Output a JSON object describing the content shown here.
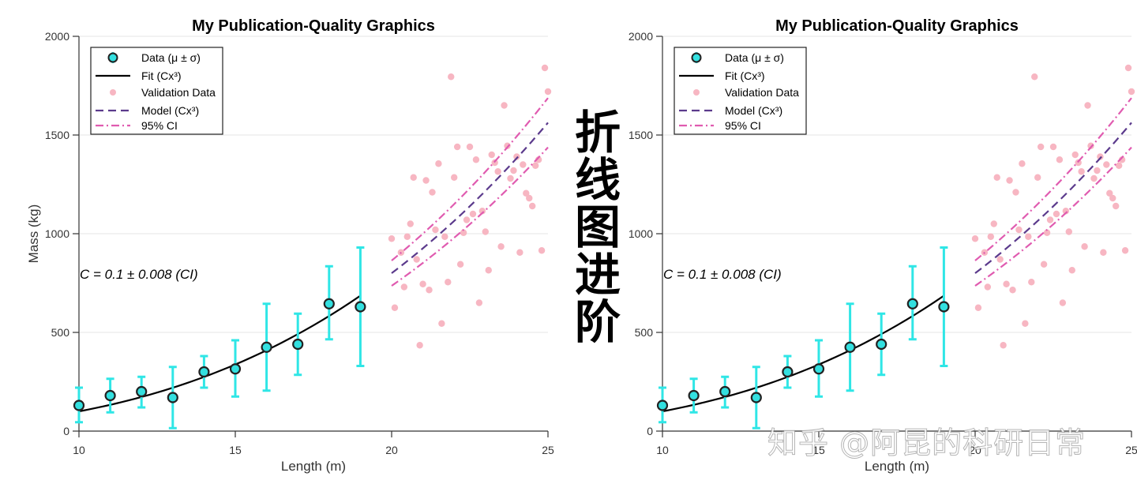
{
  "side_text": [
    "折",
    "线",
    "图",
    "进",
    "阶"
  ],
  "watermark": "知乎 @阿昆的科研日常",
  "colors": {
    "data_marker_fill": "#33e0e0",
    "data_marker_edge": "#222222",
    "errorbar": "#2fe6e6",
    "fit": "#000000",
    "validation": "#f7b6c2",
    "model": "#5b3a8c",
    "ci": "#e05bb0",
    "grid": "#e6e6e6"
  },
  "chart_data": [
    {
      "type": "line",
      "title": "My Publication-Quality Graphics",
      "xlabel": "Length (m)",
      "ylabel": "Mass (kg)",
      "xlim": [
        10,
        25
      ],
      "ylim": [
        0,
        2000
      ],
      "xticks": [
        "10",
        "15",
        "20",
        "25"
      ],
      "yticks": [
        "0",
        "500",
        "1000",
        "1500",
        "2000"
      ],
      "grid": "horizontal",
      "legend_position": "top-left",
      "legend": [
        "Data (μ ± σ)",
        "Fit (Cx³)",
        "Validation Data",
        "Model (Cx³)",
        "95% CI"
      ],
      "annotation": "C = 0.1 ± 0.008 (CI)",
      "data": {
        "x": [
          10,
          11,
          12,
          13,
          14,
          15,
          16,
          17,
          18,
          19
        ],
        "mean": [
          130,
          180,
          200,
          170,
          300,
          315,
          425,
          440,
          645,
          630
        ],
        "lower": [
          45,
          95,
          120,
          15,
          220,
          175,
          205,
          285,
          465,
          330
        ],
        "upper": [
          220,
          265,
          275,
          325,
          380,
          460,
          645,
          595,
          835,
          930
        ]
      },
      "fit": {
        "form": "C*x^3",
        "C": 0.1,
        "x_range": [
          10,
          19
        ]
      },
      "validation": {
        "x": [
          20.0,
          20.1,
          20.3,
          20.4,
          20.5,
          20.6,
          20.7,
          20.8,
          20.9,
          21.0,
          21.1,
          21.2,
          21.3,
          21.4,
          21.5,
          21.6,
          21.7,
          21.8,
          21.9,
          22.0,
          22.1,
          22.2,
          22.3,
          22.4,
          22.5,
          22.6,
          22.7,
          22.8,
          22.9,
          23.0,
          23.1,
          23.2,
          23.3,
          23.4,
          23.5,
          23.6,
          23.7,
          23.8,
          23.9,
          24.0,
          24.1,
          24.2,
          24.3,
          24.4,
          24.5,
          24.6,
          24.7,
          24.8,
          24.9,
          25.0
        ],
        "y": [
          975,
          625,
          905,
          730,
          985,
          1050,
          1285,
          870,
          435,
          745,
          1270,
          715,
          1210,
          1020,
          1355,
          545,
          985,
          755,
          1795,
          1285,
          1440,
          845,
          1005,
          1070,
          1440,
          1100,
          1375,
          650,
          1115,
          1010,
          815,
          1400,
          1360,
          1315,
          935,
          1650,
          1445,
          1280,
          1320,
          1390,
          905,
          1350,
          1205,
          1180,
          1140,
          1345,
          1375,
          915,
          1840,
          1720
        ]
      },
      "model": {
        "form": "C*x^3",
        "C": 0.1,
        "x_range": [
          20,
          25
        ]
      },
      "ci": {
        "lower_C": 0.092,
        "upper_C": 0.108,
        "x_range": [
          20,
          25
        ]
      }
    },
    {
      "type": "line",
      "title": "My Publication-Quality Graphics",
      "xlabel": "Length (m)",
      "ylabel": "",
      "xlim": [
        10,
        25
      ],
      "ylim": [
        0,
        2000
      ],
      "xticks": [
        "10",
        "15",
        "20",
        "25"
      ],
      "yticks": [
        "0",
        "500",
        "1000",
        "1500",
        "2000"
      ],
      "grid": "horizontal",
      "legend_position": "top-left",
      "legend": [
        "Data (μ ± σ)",
        "Fit (Cx³)",
        "Validation Data",
        "Model (Cx³)",
        "95% CI"
      ],
      "annotation": "C = 0.1 ± 0.008 (CI)",
      "data": {
        "x": [
          10,
          11,
          12,
          13,
          14,
          15,
          16,
          17,
          18,
          19
        ],
        "mean": [
          130,
          180,
          200,
          170,
          300,
          315,
          425,
          440,
          645,
          630
        ],
        "lower": [
          45,
          95,
          120,
          15,
          220,
          175,
          205,
          285,
          465,
          330
        ],
        "upper": [
          220,
          265,
          275,
          325,
          380,
          460,
          645,
          595,
          835,
          930
        ]
      },
      "fit": {
        "form": "C*x^3",
        "C": 0.1,
        "x_range": [
          10,
          19
        ]
      },
      "validation": {
        "x": [
          20.0,
          20.1,
          20.3,
          20.4,
          20.5,
          20.6,
          20.7,
          20.8,
          20.9,
          21.0,
          21.1,
          21.2,
          21.3,
          21.4,
          21.5,
          21.6,
          21.7,
          21.8,
          21.9,
          22.0,
          22.1,
          22.2,
          22.3,
          22.4,
          22.5,
          22.6,
          22.7,
          22.8,
          22.9,
          23.0,
          23.1,
          23.2,
          23.3,
          23.4,
          23.5,
          23.6,
          23.7,
          23.8,
          23.9,
          24.0,
          24.1,
          24.2,
          24.3,
          24.4,
          24.5,
          24.6,
          24.7,
          24.8,
          24.9,
          25.0
        ],
        "y": [
          975,
          625,
          905,
          730,
          985,
          1050,
          1285,
          870,
          435,
          745,
          1270,
          715,
          1210,
          1020,
          1355,
          545,
          985,
          755,
          1795,
          1285,
          1440,
          845,
          1005,
          1070,
          1440,
          1100,
          1375,
          650,
          1115,
          1010,
          815,
          1400,
          1360,
          1315,
          935,
          1650,
          1445,
          1280,
          1320,
          1390,
          905,
          1350,
          1205,
          1180,
          1140,
          1345,
          1375,
          915,
          1840,
          1720
        ]
      },
      "model": {
        "form": "C*x^3",
        "C": 0.1,
        "x_range": [
          20,
          25
        ]
      },
      "ci": {
        "lower_C": 0.092,
        "upper_C": 0.108,
        "x_range": [
          20,
          25
        ]
      }
    }
  ]
}
